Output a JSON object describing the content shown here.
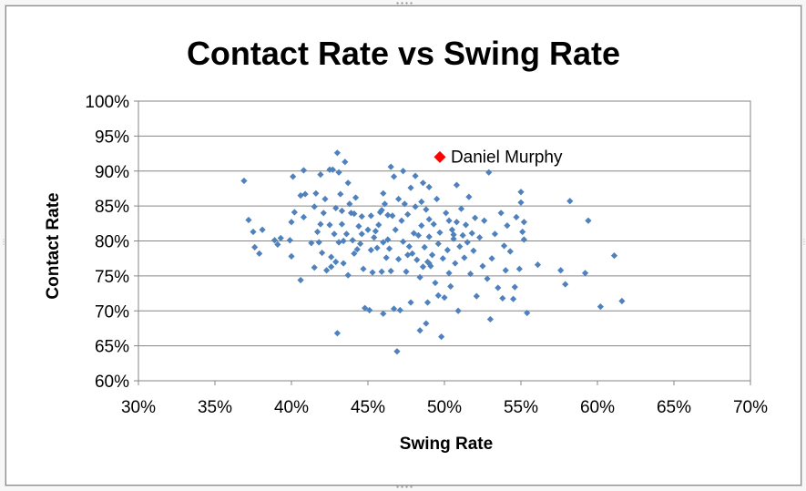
{
  "chart_data": {
    "type": "scatter",
    "title": "Contact Rate vs Swing Rate",
    "xlabel": "Swing Rate",
    "ylabel": "Contact Rate",
    "xlim": [
      30,
      70
    ],
    "ylim": [
      60,
      100
    ],
    "x_ticks": [
      "30%",
      "35%",
      "40%",
      "45%",
      "50%",
      "55%",
      "60%",
      "65%",
      "70%"
    ],
    "y_ticks": [
      "60%",
      "65%",
      "70%",
      "75%",
      "80%",
      "85%",
      "90%",
      "95%",
      "100%"
    ],
    "grid": "horizontal",
    "legend": "none",
    "series": [
      {
        "marker": "diamond",
        "color": "#4f81bd",
        "points": [
          [
            36.9,
            88.6
          ],
          [
            37.2,
            83.0
          ],
          [
            37.5,
            81.3
          ],
          [
            37.6,
            79.1
          ],
          [
            37.9,
            78.2
          ],
          [
            38.1,
            81.6
          ],
          [
            38.9,
            80.1
          ],
          [
            39.1,
            79.5
          ],
          [
            39.3,
            80.4
          ],
          [
            39.9,
            80.1
          ],
          [
            40.0,
            82.7
          ],
          [
            40.0,
            77.8
          ],
          [
            40.1,
            89.2
          ],
          [
            40.2,
            84.1
          ],
          [
            40.6,
            74.4
          ],
          [
            40.6,
            86.5
          ],
          [
            40.8,
            90.1
          ],
          [
            40.8,
            83.4
          ],
          [
            40.9,
            86.7
          ],
          [
            41.3,
            79.7
          ],
          [
            41.5,
            76.2
          ],
          [
            41.5,
            84.9
          ],
          [
            41.6,
            86.8
          ],
          [
            41.7,
            81.3
          ],
          [
            41.8,
            79.8
          ],
          [
            41.9,
            89.5
          ],
          [
            41.9,
            82.4
          ],
          [
            42.0,
            78.3
          ],
          [
            42.1,
            84.0
          ],
          [
            42.2,
            86.0
          ],
          [
            42.3,
            75.8
          ],
          [
            42.5,
            90.2
          ],
          [
            42.5,
            82.3
          ],
          [
            42.6,
            77.7
          ],
          [
            42.6,
            76.3
          ],
          [
            42.7,
            90.2
          ],
          [
            42.8,
            81.0
          ],
          [
            42.9,
            84.7
          ],
          [
            42.9,
            77.0
          ],
          [
            43.0,
            92.6
          ],
          [
            43.0,
            66.8
          ],
          [
            43.1,
            89.8
          ],
          [
            43.1,
            79.8
          ],
          [
            43.2,
            86.7
          ],
          [
            43.3,
            84.3
          ],
          [
            43.3,
            82.4
          ],
          [
            43.4,
            80.0
          ],
          [
            43.4,
            76.8
          ],
          [
            43.5,
            91.3
          ],
          [
            43.6,
            81.0
          ],
          [
            43.7,
            88.3
          ],
          [
            43.7,
            75.1
          ],
          [
            43.8,
            85.3
          ],
          [
            43.9,
            84.0
          ],
          [
            44.0,
            80.1
          ],
          [
            44.1,
            83.9
          ],
          [
            44.1,
            78.2
          ],
          [
            44.2,
            86.2
          ],
          [
            44.3,
            78.8
          ],
          [
            44.4,
            82.1
          ],
          [
            44.5,
            79.6
          ],
          [
            44.6,
            83.5
          ],
          [
            44.7,
            76.0
          ],
          [
            44.8,
            70.4
          ],
          [
            45.0,
            81.6
          ],
          [
            45.1,
            70.1
          ],
          [
            45.2,
            83.6
          ],
          [
            45.2,
            78.7
          ],
          [
            45.3,
            75.5
          ],
          [
            45.4,
            80.5
          ],
          [
            45.5,
            81.4
          ],
          [
            45.6,
            79.0
          ],
          [
            45.7,
            82.3
          ],
          [
            45.8,
            84.1
          ],
          [
            45.9,
            75.6
          ],
          [
            46.0,
            86.8
          ],
          [
            46.0,
            79.8
          ],
          [
            46.0,
            69.6
          ],
          [
            46.1,
            85.3
          ],
          [
            46.2,
            77.6
          ],
          [
            46.3,
            83.7
          ],
          [
            46.4,
            78.9
          ],
          [
            46.5,
            90.6
          ],
          [
            46.5,
            75.7
          ],
          [
            46.6,
            83.6
          ],
          [
            46.7,
            70.3
          ],
          [
            46.7,
            89.2
          ],
          [
            46.8,
            81.6
          ],
          [
            46.9,
            64.2
          ],
          [
            47.0,
            86.0
          ],
          [
            47.0,
            77.4
          ],
          [
            47.1,
            70.1
          ],
          [
            47.2,
            82.9
          ],
          [
            47.3,
            90.0
          ],
          [
            47.3,
            79.9
          ],
          [
            47.4,
            85.3
          ],
          [
            47.5,
            75.6
          ],
          [
            47.6,
            83.8
          ],
          [
            47.7,
            79.2
          ],
          [
            47.8,
            71.2
          ],
          [
            47.8,
            87.6
          ],
          [
            47.9,
            78.2
          ],
          [
            48.0,
            81.1
          ],
          [
            48.1,
            89.3
          ],
          [
            48.1,
            84.9
          ],
          [
            48.2,
            77.3
          ],
          [
            48.3,
            80.8
          ],
          [
            48.4,
            74.8
          ],
          [
            48.4,
            67.2
          ],
          [
            48.5,
            85.6
          ],
          [
            48.5,
            82.2
          ],
          [
            48.6,
            76.3
          ],
          [
            48.6,
            88.3
          ],
          [
            48.7,
            79.1
          ],
          [
            48.8,
            84.5
          ],
          [
            48.8,
            68.2
          ],
          [
            48.9,
            77.0
          ],
          [
            48.9,
            71.2
          ],
          [
            49.0,
            87.7
          ],
          [
            49.0,
            83.1
          ],
          [
            49.0,
            80.6
          ],
          [
            49.1,
            76.4
          ],
          [
            49.2,
            78.0
          ],
          [
            49.3,
            82.4
          ],
          [
            49.4,
            74.0
          ],
          [
            49.5,
            86.0
          ],
          [
            49.6,
            79.6
          ],
          [
            49.6,
            72.2
          ],
          [
            49.7,
            81.2
          ],
          [
            49.8,
            66.3
          ],
          [
            49.9,
            77.5
          ],
          [
            50.0,
            71.9
          ],
          [
            50.1,
            84.0
          ],
          [
            50.2,
            78.7
          ],
          [
            50.3,
            82.9
          ],
          [
            50.3,
            75.4
          ],
          [
            50.4,
            73.5
          ],
          [
            50.5,
            81.6
          ],
          [
            50.6,
            80.3
          ],
          [
            50.7,
            76.8
          ],
          [
            50.8,
            88.0
          ],
          [
            50.8,
            82.7
          ],
          [
            50.9,
            70.0
          ],
          [
            51.0,
            79.2
          ],
          [
            51.1,
            84.6
          ],
          [
            51.2,
            80.8
          ],
          [
            51.3,
            77.6
          ],
          [
            51.4,
            82.3
          ],
          [
            51.5,
            79.8
          ],
          [
            51.6,
            86.3
          ],
          [
            51.7,
            75.3
          ],
          [
            51.8,
            81.1
          ],
          [
            51.9,
            78.6
          ],
          [
            52.0,
            83.3
          ],
          [
            52.1,
            72.1
          ],
          [
            52.3,
            80.5
          ],
          [
            52.5,
            76.4
          ],
          [
            52.6,
            82.9
          ],
          [
            52.8,
            74.6
          ],
          [
            52.9,
            89.8
          ],
          [
            53.0,
            68.8
          ],
          [
            53.1,
            77.5
          ],
          [
            53.3,
            81.0
          ],
          [
            53.5,
            73.3
          ],
          [
            53.7,
            84.0
          ],
          [
            53.8,
            71.8
          ],
          [
            53.9,
            79.3
          ],
          [
            54.0,
            75.8
          ],
          [
            54.1,
            82.2
          ],
          [
            54.3,
            78.5
          ],
          [
            54.5,
            71.7
          ],
          [
            54.6,
            73.4
          ],
          [
            54.7,
            83.4
          ],
          [
            54.9,
            76.0
          ],
          [
            55.0,
            87.0
          ],
          [
            55.0,
            85.5
          ],
          [
            55.1,
            81.3
          ],
          [
            55.2,
            82.7
          ],
          [
            55.2,
            80.2
          ],
          [
            55.4,
            69.7
          ],
          [
            56.1,
            76.6
          ],
          [
            57.6,
            75.8
          ],
          [
            57.9,
            73.8
          ],
          [
            58.2,
            85.7
          ],
          [
            59.2,
            75.4
          ],
          [
            59.4,
            82.9
          ],
          [
            60.2,
            70.6
          ],
          [
            61.1,
            77.9
          ],
          [
            61.6,
            71.4
          ],
          [
            45.9,
            84.4
          ],
          [
            44.6,
            81.0
          ],
          [
            47.6,
            78.0
          ],
          [
            50.6,
            80.9
          ],
          [
            46.3,
            80.2
          ],
          [
            49.0,
            76.8
          ]
        ]
      },
      {
        "name": "Daniel Murphy",
        "marker": "diamond",
        "color": "#ff0000",
        "points": [
          [
            49.7,
            92.0
          ]
        ]
      }
    ],
    "annotations": [
      {
        "text": "Daniel Murphy",
        "x": 49.7,
        "y": 92.0
      }
    ]
  }
}
